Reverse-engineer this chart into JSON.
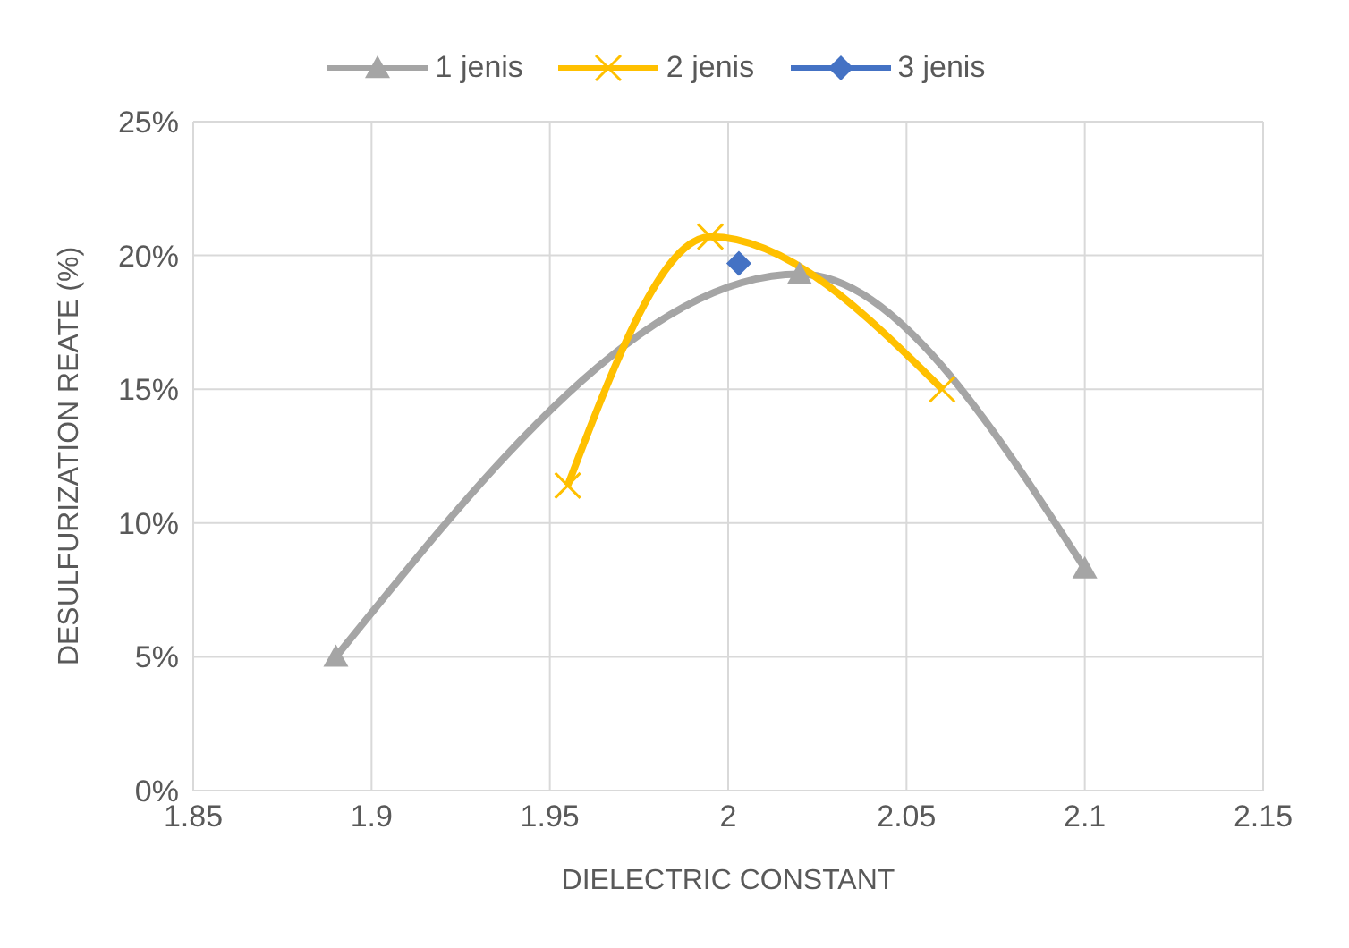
{
  "chart_data": {
    "type": "line",
    "xlabel": "DIELECTRIC CONSTANT",
    "ylabel": "DESULFURIZATION REATE (%)",
    "xlim": [
      1.85,
      2.15
    ],
    "xticks": [
      1.85,
      1.9,
      1.95,
      2,
      2.05,
      2.1,
      2.15
    ],
    "ylim": [
      0,
      25
    ],
    "yticks": [
      {
        "value": 0,
        "label": "0%"
      },
      {
        "value": 5,
        "label": "5%"
      },
      {
        "value": 10,
        "label": "10%"
      },
      {
        "value": 15,
        "label": "15%"
      },
      {
        "value": 20,
        "label": "20%"
      },
      {
        "value": 25,
        "label": "25%"
      }
    ],
    "grid": true,
    "legend": "top",
    "series": [
      {
        "name": "1 jenis",
        "color": "#a5a5a5",
        "marker": "triangle",
        "x": [
          1.89,
          2.02,
          2.1
        ],
        "values": [
          5,
          19.3,
          8.3
        ]
      },
      {
        "name": "2 jenis",
        "color": "#ffc000",
        "marker": "cross",
        "x": [
          1.955,
          1.995,
          2.06
        ],
        "values": [
          11.4,
          20.7,
          15
        ]
      },
      {
        "name": "3 jenis",
        "color": "#4472c4",
        "marker": "diamond",
        "x": [
          2.003
        ],
        "values": [
          19.7
        ]
      }
    ]
  }
}
